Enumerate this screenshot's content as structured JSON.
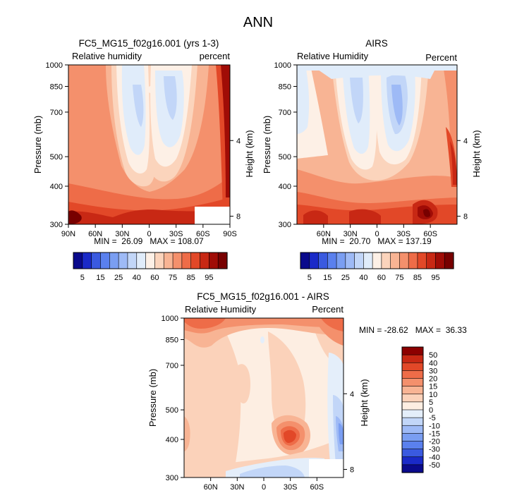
{
  "figure_title": "ANN",
  "colors": {
    "seq": [
      "#0a0a8c",
      "#1a2ac8",
      "#3a5ae0",
      "#5a80ee",
      "#7a9ef2",
      "#9ebaf6",
      "#c2d6f8",
      "#e0ecfa",
      "#fdf0e6",
      "#fbd4bc",
      "#f8b494",
      "#f4906c",
      "#ee6c48",
      "#e24828",
      "#c82814",
      "#a00c06",
      "#780000"
    ],
    "diff": [
      "#0a0a8c",
      "#1a2ac8",
      "#3a5ae0",
      "#5a80ee",
      "#7a9ef2",
      "#9ebaf6",
      "#c2d6f8",
      "#e4eefa",
      "#fdeee2",
      "#fbd2ba",
      "#f8b494",
      "#f4906c",
      "#ee6c48",
      "#e24828",
      "#c82814",
      "#8c0000"
    ],
    "mask": "#ffffff"
  },
  "chart_data": [
    {
      "type": "contour",
      "title": "FC5_MG15_f02g16.001 (yrs 1-3)",
      "left_label": "Relative humidity",
      "right_label": "percent",
      "ylabel": "Pressure (mb)",
      "ylabel_right": "Height (km)",
      "y_ticks": [
        "300",
        "400",
        "500",
        "700",
        "850",
        "1000"
      ],
      "x_ticks": [
        "90N",
        "60N",
        "30N",
        "0",
        "30S",
        "60S",
        "90S"
      ],
      "height_ticks": [
        "8",
        "4"
      ],
      "stats": "MIN =  26.09   MAX = 108.07",
      "min": 26.09,
      "max": 108.07,
      "colorbar_labels": [
        "5",
        "15",
        "25",
        "40",
        "60",
        "75",
        "85",
        "95"
      ]
    },
    {
      "type": "contour",
      "title": "AIRS",
      "left_label": "Relative Humidity",
      "right_label": "Percent",
      "ylabel": "Pressure (mb)",
      "ylabel_right": "Height (km)",
      "y_ticks": [
        "300",
        "400",
        "500",
        "700",
        "850",
        "1000"
      ],
      "x_ticks": [
        "60N",
        "30N",
        "0",
        "30S",
        "60S"
      ],
      "height_ticks": [
        "8",
        "4"
      ],
      "stats": "MIN =  20.70   MAX = 137.19",
      "min": 20.7,
      "max": 137.19,
      "colorbar_labels": [
        "5",
        "15",
        "25",
        "40",
        "60",
        "75",
        "85",
        "95"
      ]
    },
    {
      "type": "contour",
      "title": "FC5_MG15_f02g16.001 - AIRS",
      "left_label": "Relative Humidity",
      "right_label": "Percent",
      "ylabel": "Pressure (mb)",
      "ylabel_right": "Height (km)",
      "y_ticks": [
        "300",
        "400",
        "500",
        "700",
        "850",
        "1000"
      ],
      "x_ticks": [
        "60N",
        "30N",
        "0",
        "30S",
        "60S"
      ],
      "height_ticks": [
        "8",
        "4"
      ],
      "stats": "MIN = -28.62   MAX =  36.33",
      "min": -28.62,
      "max": 36.33,
      "colorbar_labels": [
        "50",
        "40",
        "30",
        "20",
        "15",
        "10",
        "5",
        "0",
        "-5",
        "-10",
        "-15",
        "-20",
        "-30",
        "-40",
        "-50"
      ]
    }
  ]
}
